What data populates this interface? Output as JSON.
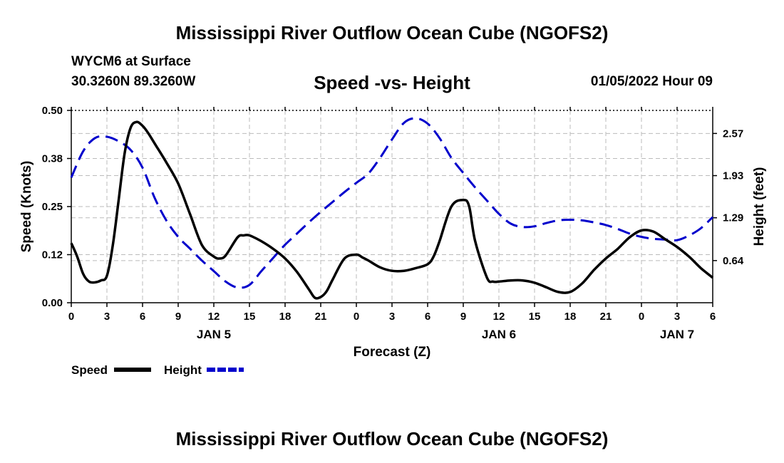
{
  "header": {
    "title": "Mississippi River Outflow Ocean Cube (NGOFS2)",
    "station": "WYCM6 at Surface",
    "coords": "30.3260N  89.3260W",
    "subtitle": "Speed -vs- Height",
    "datestamp": "01/05/2022 Hour 09"
  },
  "footer": {
    "title": "Mississippi River Outflow Ocean Cube (NGOFS2)"
  },
  "colors": {
    "speed": "#000000",
    "height": "#0000cc",
    "grid": "#bbbbbb"
  },
  "chart_data": {
    "type": "line",
    "title": "Speed -vs- Height",
    "xlabel": "Forecast (Z)",
    "ylabel": "Speed (Knots)",
    "y2label": "Height (feet)",
    "xlim": [
      0,
      54
    ],
    "ylim": [
      0,
      0.5
    ],
    "y2lim": [
      0,
      2.92
    ],
    "x_ticks": [
      0,
      3,
      6,
      9,
      12,
      15,
      18,
      21,
      24,
      27,
      30,
      33,
      36,
      39,
      42,
      45,
      48,
      51,
      54
    ],
    "x_tick_labels": [
      "0",
      "3",
      "6",
      "9",
      "12",
      "15",
      "18",
      "21",
      "0",
      "3",
      "6",
      "9",
      "12",
      "15",
      "18",
      "21",
      "0",
      "3",
      "6"
    ],
    "y_ticks": [
      0,
      0.125,
      0.25,
      0.375,
      0.5
    ],
    "y_tick_labels": [
      "0.00",
      "0.12",
      "0.25",
      "0.38",
      "0.50"
    ],
    "y2_ticks": [
      0.64,
      1.29,
      1.93,
      2.57
    ],
    "y2_tick_labels": [
      "0.64",
      "1.29",
      "1.93",
      "2.57"
    ],
    "day_labels": [
      {
        "x": 12,
        "label": "JAN 5"
      },
      {
        "x": 36,
        "label": "JAN 6"
      },
      {
        "x": 51,
        "label": "JAN 7"
      }
    ],
    "legend": {
      "placement": "bottom-left",
      "speed_label": "Speed",
      "height_label": "Height"
    },
    "series": [
      {
        "name": "Speed",
        "axis": "left",
        "unit": "knots",
        "x": [
          0,
          0.5,
          1,
          1.5,
          2,
          2.5,
          3,
          3.5,
          4,
          4.5,
          5,
          5.5,
          6,
          6.5,
          7,
          8,
          9,
          10,
          11,
          12,
          12.5,
          13,
          14,
          14.5,
          15,
          16,
          17,
          18,
          19,
          20,
          20.5,
          21,
          21.5,
          22,
          23,
          24,
          24.5,
          25,
          26,
          27,
          28,
          29,
          30,
          30.5,
          31,
          32,
          33,
          33.5,
          34,
          35,
          35.5,
          36,
          37,
          38,
          39,
          40,
          41,
          42,
          43,
          44,
          45,
          46,
          47,
          48,
          49,
          50,
          51,
          52,
          53,
          54
        ],
        "values": [
          0.155,
          0.12,
          0.075,
          0.055,
          0.053,
          0.058,
          0.07,
          0.15,
          0.27,
          0.39,
          0.455,
          0.47,
          0.46,
          0.44,
          0.415,
          0.365,
          0.31,
          0.23,
          0.15,
          0.12,
          0.115,
          0.123,
          0.17,
          0.175,
          0.175,
          0.16,
          0.14,
          0.115,
          0.08,
          0.035,
          0.013,
          0.015,
          0.03,
          0.06,
          0.115,
          0.125,
          0.118,
          0.11,
          0.092,
          0.083,
          0.083,
          0.09,
          0.1,
          0.12,
          0.16,
          0.25,
          0.267,
          0.25,
          0.16,
          0.065,
          0.055,
          0.055,
          0.058,
          0.058,
          0.052,
          0.04,
          0.028,
          0.028,
          0.05,
          0.085,
          0.115,
          0.14,
          0.17,
          0.188,
          0.185,
          0.165,
          0.145,
          0.12,
          0.09,
          0.065
        ]
      },
      {
        "name": "Height",
        "axis": "right",
        "unit": "feet",
        "x": [
          0,
          1,
          2,
          3,
          4,
          5,
          6,
          7,
          8,
          9,
          10,
          11,
          12,
          13,
          14,
          15,
          16,
          17,
          18,
          19,
          20,
          21,
          22,
          23,
          24,
          25,
          26,
          27,
          28,
          29,
          30,
          31,
          32,
          33,
          34,
          35,
          36,
          37,
          38,
          39,
          40,
          41,
          42,
          43,
          44,
          45,
          46,
          47,
          48,
          49,
          50,
          51,
          52,
          53,
          54
        ],
        "values": [
          1.9,
          2.3,
          2.5,
          2.52,
          2.45,
          2.32,
          2.05,
          1.6,
          1.25,
          1.0,
          0.82,
          0.64,
          0.48,
          0.32,
          0.23,
          0.27,
          0.48,
          0.68,
          0.88,
          1.05,
          1.22,
          1.38,
          1.53,
          1.68,
          1.82,
          1.96,
          2.2,
          2.48,
          2.73,
          2.8,
          2.72,
          2.5,
          2.2,
          1.97,
          1.75,
          1.55,
          1.35,
          1.2,
          1.15,
          1.16,
          1.21,
          1.25,
          1.26,
          1.25,
          1.22,
          1.18,
          1.12,
          1.05,
          1.0,
          0.97,
          0.96,
          0.95,
          1.02,
          1.13,
          1.3
        ]
      }
    ]
  }
}
